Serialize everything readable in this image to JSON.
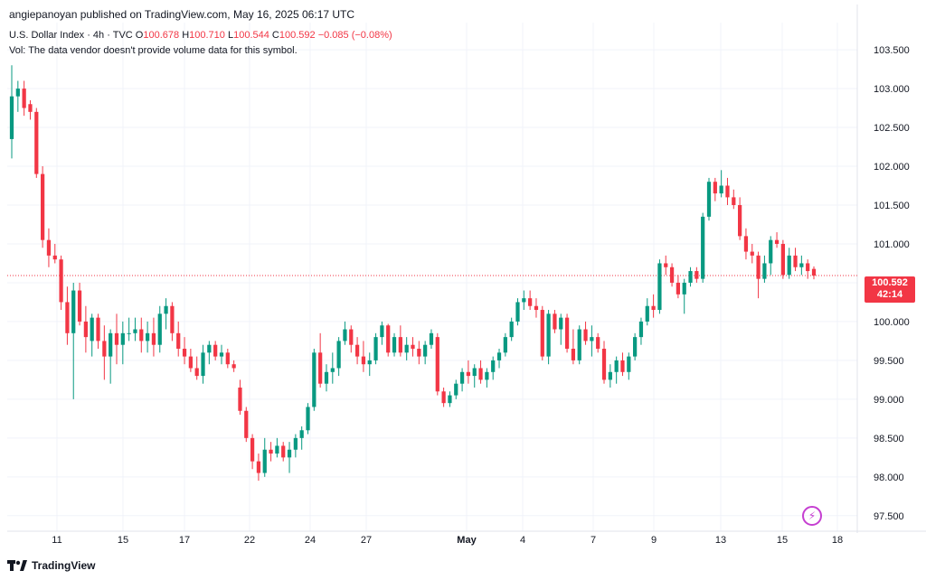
{
  "header": {
    "publisher": "angiepanoyan published on TradingView.com, May 16, 2025 06:17 UTC",
    "symbol": "U.S. Dollar Index · 4h · TVC",
    "o_label": "O",
    "o_value": "100.678",
    "h_label": "H",
    "h_value": "100.710",
    "l_label": "L",
    "l_value": "100.544",
    "c_label": "C",
    "c_value": "100.592",
    "change": "−0.085 (−0.08%)",
    "vol_note": "Vol: The data vendor doesn't provide volume data for this symbol."
  },
  "price_tag": {
    "price": "100.592",
    "countdown": "42:14"
  },
  "footer": {
    "brand": "TradingView",
    "logo_icon": "tradingview-logo-icon"
  },
  "colors": {
    "up": "#089981",
    "down": "#f23645",
    "grid": "#f0f3fa",
    "text": "#131722"
  },
  "chart_data": {
    "type": "candlestick",
    "title": "U.S. Dollar Index · 4h · TVC",
    "ylim": [
      97.3,
      103.85
    ],
    "ytick_labels": [
      "97.500",
      "98.000",
      "98.500",
      "99.000",
      "99.500",
      "100.000",
      "100.500",
      "101.000",
      "101.500",
      "102.000",
      "102.500",
      "103.000",
      "103.500"
    ],
    "xtick_labels": [
      "11",
      "15",
      "17",
      "22",
      "24",
      "27",
      "May",
      "4",
      "7",
      "9",
      "13",
      "15",
      "18"
    ],
    "last_price": 100.592,
    "candles_ohlc": [
      [
        102.35,
        103.3,
        102.1,
        102.9
      ],
      [
        102.9,
        103.1,
        102.7,
        103.0
      ],
      [
        103.0,
        103.1,
        102.65,
        102.75
      ],
      [
        102.8,
        102.85,
        102.6,
        102.7
      ],
      [
        102.7,
        102.75,
        101.85,
        101.9
      ],
      [
        101.9,
        102.0,
        100.95,
        101.05
      ],
      [
        101.05,
        101.2,
        100.7,
        100.85
      ],
      [
        100.85,
        101.0,
        100.75,
        100.8
      ],
      [
        100.8,
        100.85,
        100.15,
        100.25
      ],
      [
        100.25,
        100.45,
        99.7,
        99.85
      ],
      [
        99.85,
        100.5,
        99.0,
        100.4
      ],
      [
        100.4,
        100.5,
        99.95,
        100.0
      ],
      [
        100.0,
        100.2,
        99.6,
        99.8
      ],
      [
        99.75,
        100.1,
        99.55,
        100.05
      ],
      [
        100.05,
        100.1,
        99.65,
        99.75
      ],
      [
        99.75,
        99.95,
        99.25,
        99.55
      ],
      [
        99.55,
        99.9,
        99.2,
        99.85
      ],
      [
        99.85,
        100.1,
        99.45,
        99.7
      ],
      [
        99.7,
        100.0,
        99.45,
        99.85
      ],
      [
        99.85,
        100.05,
        99.75,
        99.85
      ],
      [
        99.85,
        100.05,
        99.75,
        99.9
      ],
      [
        99.9,
        100.05,
        99.6,
        99.75
      ],
      [
        99.75,
        100.0,
        99.6,
        99.85
      ],
      [
        99.85,
        100.05,
        99.55,
        99.7
      ],
      [
        99.7,
        100.2,
        99.6,
        100.1
      ],
      [
        100.1,
        100.3,
        99.9,
        100.2
      ],
      [
        100.2,
        100.25,
        99.75,
        99.85
      ],
      [
        99.85,
        100.0,
        99.55,
        99.65
      ],
      [
        99.65,
        99.8,
        99.45,
        99.55
      ],
      [
        99.55,
        99.65,
        99.35,
        99.4
      ],
      [
        99.4,
        99.55,
        99.25,
        99.3
      ],
      [
        99.3,
        99.7,
        99.2,
        99.6
      ],
      [
        99.6,
        99.75,
        99.45,
        99.7
      ],
      [
        99.7,
        99.75,
        99.5,
        99.55
      ],
      [
        99.55,
        99.7,
        99.45,
        99.6
      ],
      [
        99.6,
        99.65,
        99.4,
        99.45
      ],
      [
        99.45,
        99.5,
        99.35,
        99.4
      ],
      [
        99.15,
        99.25,
        98.8,
        98.85
      ],
      [
        98.85,
        98.9,
        98.45,
        98.5
      ],
      [
        98.5,
        98.55,
        98.1,
        98.2
      ],
      [
        98.2,
        98.3,
        97.95,
        98.05
      ],
      [
        98.05,
        98.5,
        98.0,
        98.35
      ],
      [
        98.35,
        98.45,
        98.2,
        98.3
      ],
      [
        98.3,
        98.5,
        98.25,
        98.4
      ],
      [
        98.4,
        98.45,
        98.2,
        98.25
      ],
      [
        98.25,
        98.45,
        98.05,
        98.35
      ],
      [
        98.35,
        98.55,
        98.25,
        98.5
      ],
      [
        98.5,
        98.65,
        98.35,
        98.6
      ],
      [
        98.6,
        98.95,
        98.55,
        98.9
      ],
      [
        98.9,
        99.65,
        98.85,
        99.6
      ],
      [
        99.6,
        99.85,
        99.15,
        99.2
      ],
      [
        99.2,
        99.45,
        99.1,
        99.35
      ],
      [
        99.35,
        99.6,
        99.2,
        99.4
      ],
      [
        99.4,
        99.8,
        99.3,
        99.75
      ],
      [
        99.75,
        100.0,
        99.7,
        99.9
      ],
      [
        99.9,
        99.95,
        99.6,
        99.7
      ],
      [
        99.7,
        99.8,
        99.45,
        99.55
      ],
      [
        99.55,
        99.75,
        99.35,
        99.45
      ],
      [
        99.45,
        99.6,
        99.3,
        99.5
      ],
      [
        99.5,
        99.85,
        99.45,
        99.8
      ],
      [
        99.8,
        100.0,
        99.7,
        99.95
      ],
      [
        99.95,
        99.97,
        99.55,
        99.6
      ],
      [
        99.6,
        99.85,
        99.55,
        99.8
      ],
      [
        99.8,
        99.95,
        99.55,
        99.6
      ],
      [
        99.6,
        99.8,
        99.5,
        99.7
      ],
      [
        99.7,
        99.8,
        99.55,
        99.65
      ],
      [
        99.65,
        99.75,
        99.45,
        99.55
      ],
      [
        99.55,
        99.75,
        99.45,
        99.7
      ],
      [
        99.7,
        99.9,
        99.65,
        99.85
      ],
      [
        99.8,
        99.85,
        99.05,
        99.1
      ],
      [
        99.1,
        99.15,
        98.9,
        98.95
      ],
      [
        98.95,
        99.1,
        98.9,
        99.05
      ],
      [
        99.05,
        99.25,
        99.0,
        99.2
      ],
      [
        99.2,
        99.4,
        99.1,
        99.35
      ],
      [
        99.35,
        99.5,
        99.2,
        99.3
      ],
      [
        99.3,
        99.45,
        99.15,
        99.4
      ],
      [
        99.4,
        99.5,
        99.2,
        99.25
      ],
      [
        99.25,
        99.4,
        99.15,
        99.35
      ],
      [
        99.35,
        99.55,
        99.25,
        99.5
      ],
      [
        99.5,
        99.65,
        99.4,
        99.6
      ],
      [
        99.6,
        99.85,
        99.55,
        99.8
      ],
      [
        99.8,
        100.05,
        99.75,
        100.0
      ],
      [
        100.0,
        100.3,
        99.95,
        100.25
      ],
      [
        100.25,
        100.4,
        100.15,
        100.3
      ],
      [
        100.3,
        100.4,
        100.15,
        100.2
      ],
      [
        100.2,
        100.3,
        100.05,
        100.15
      ],
      [
        100.15,
        100.2,
        99.5,
        99.55
      ],
      [
        99.55,
        100.15,
        99.45,
        100.1
      ],
      [
        100.1,
        100.15,
        99.85,
        99.9
      ],
      [
        99.9,
        100.1,
        99.7,
        100.05
      ],
      [
        100.05,
        100.1,
        99.6,
        99.65
      ],
      [
        99.65,
        99.9,
        99.45,
        99.5
      ],
      [
        99.5,
        99.95,
        99.45,
        99.9
      ],
      [
        99.9,
        100.0,
        99.7,
        99.75
      ],
      [
        99.75,
        99.95,
        99.55,
        99.8
      ],
      [
        99.8,
        99.85,
        99.6,
        99.65
      ],
      [
        99.65,
        99.75,
        99.2,
        99.25
      ],
      [
        99.25,
        99.45,
        99.15,
        99.35
      ],
      [
        99.35,
        99.55,
        99.2,
        99.5
      ],
      [
        99.5,
        99.6,
        99.3,
        99.35
      ],
      [
        99.35,
        99.6,
        99.25,
        99.55
      ],
      [
        99.55,
        99.85,
        99.5,
        99.8
      ],
      [
        99.8,
        100.05,
        99.7,
        100.0
      ],
      [
        100.0,
        100.3,
        99.95,
        100.2
      ],
      [
        100.2,
        100.35,
        100.05,
        100.15
      ],
      [
        100.15,
        100.8,
        100.1,
        100.75
      ],
      [
        100.75,
        100.85,
        100.6,
        100.7
      ],
      [
        100.7,
        100.75,
        100.45,
        100.5
      ],
      [
        100.5,
        100.6,
        100.3,
        100.35
      ],
      [
        100.35,
        100.55,
        100.1,
        100.5
      ],
      [
        100.5,
        100.7,
        100.45,
        100.65
      ],
      [
        100.65,
        100.7,
        100.5,
        100.55
      ],
      [
        100.55,
        101.4,
        100.5,
        101.35
      ],
      [
        101.35,
        101.85,
        101.3,
        101.8
      ],
      [
        101.8,
        101.85,
        101.55,
        101.65
      ],
      [
        101.65,
        101.95,
        101.6,
        101.75
      ],
      [
        101.75,
        101.85,
        101.5,
        101.6
      ],
      [
        101.6,
        101.7,
        101.45,
        101.5
      ],
      [
        101.5,
        101.6,
        101.05,
        101.1
      ],
      [
        101.1,
        101.2,
        100.8,
        100.9
      ],
      [
        100.9,
        101.0,
        100.75,
        100.85
      ],
      [
        100.85,
        100.9,
        100.3,
        100.55
      ],
      [
        100.55,
        100.85,
        100.5,
        100.75
      ],
      [
        100.75,
        101.1,
        100.6,
        101.05
      ],
      [
        101.05,
        101.15,
        100.95,
        101.0
      ],
      [
        101.0,
        101.05,
        100.55,
        100.6
      ],
      [
        100.6,
        100.95,
        100.55,
        100.85
      ],
      [
        100.85,
        100.95,
        100.65,
        100.7
      ],
      [
        100.7,
        100.85,
        100.6,
        100.75
      ],
      [
        100.75,
        100.8,
        100.55,
        100.65
      ],
      [
        100.678,
        100.71,
        100.544,
        100.592
      ]
    ]
  }
}
